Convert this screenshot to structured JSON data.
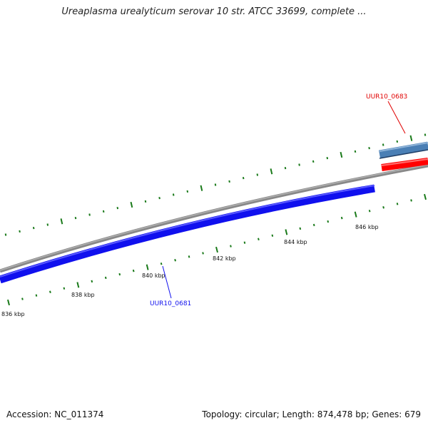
{
  "title": "Ureaplasma urealyticum serovar 10 str. ATCC 33699, complete ...",
  "footer": {
    "accession": "Accession: NC_011374",
    "stats": "Topology: circular; Length: 874,478 bp; Genes: 679"
  },
  "scale_labels": [
    "836 kbp",
    "838 kbp",
    "840 kbp",
    "842 kbp",
    "844 kbp",
    "846 kbp"
  ],
  "genes": [
    {
      "name": "UUR10_0681",
      "strand": "minus",
      "color": "#1010ee"
    },
    {
      "name": "UUR10_0683",
      "strand": "plus",
      "color": "#e00000"
    }
  ],
  "colors": {
    "backbone": "#8c8c8c",
    "ticks": "#1a7a1a",
    "gene_minus": "#1010ee",
    "gene_plus_red": "#ff0000",
    "gene_plus_blue": "#4a7fb5"
  }
}
